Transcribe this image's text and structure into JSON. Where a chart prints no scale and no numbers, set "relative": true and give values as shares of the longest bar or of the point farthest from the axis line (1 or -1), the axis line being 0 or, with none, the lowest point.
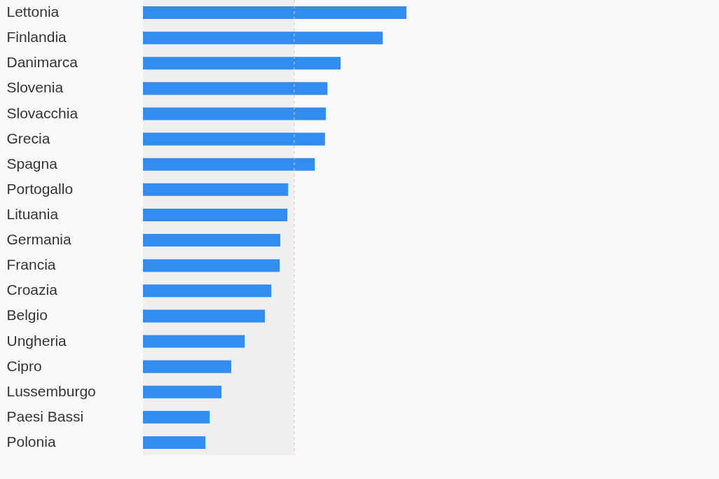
{
  "chart_data": {
    "type": "bar",
    "orientation": "horizontal",
    "relative": true,
    "categories": [
      "Lettonia",
      "Finlandia",
      "Danimarca",
      "Slovenia",
      "Slovacchia",
      "Grecia",
      "Spagna",
      "Portogallo",
      "Lituania",
      "Germania",
      "Francia",
      "Croazia",
      "Belgio",
      "Ungheria",
      "Cipro",
      "Lussemburgo",
      "Paesi Bassi",
      "Polonia"
    ],
    "values": [
      1,
      0.91,
      0.75,
      0.7,
      0.694,
      0.691,
      0.652,
      0.551,
      0.548,
      0.521,
      0.519,
      0.487,
      0.463,
      0.386,
      0.335,
      0.298,
      0.253,
      0.237
    ],
    "color": "#338cf0",
    "bands": [
      {
        "axis": "x",
        "from": 0,
        "to": 0.574,
        "color": "#efefef"
      }
    ],
    "ref_lines": [
      {
        "axis": "x",
        "value": 0.574,
        "color": "#f6b8c4",
        "line_style": "dashed"
      }
    ],
    "grid": false
  }
}
